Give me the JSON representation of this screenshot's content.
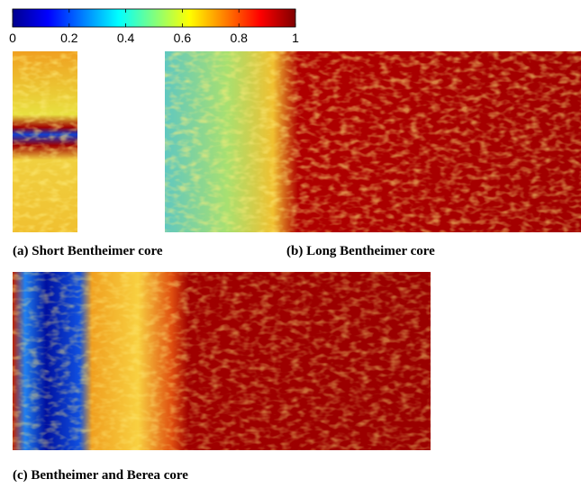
{
  "colorbar": {
    "lim": [
      0,
      1
    ],
    "ticks": [
      0,
      0.2,
      0.4,
      0.6,
      0.8,
      1
    ]
  },
  "panels": [
    {
      "caption": "(a) Short Bentheimer core"
    },
    {
      "caption": "(b) Long Bentheimer core"
    },
    {
      "caption": "(c) Bentheimer and Berea core"
    }
  ]
}
